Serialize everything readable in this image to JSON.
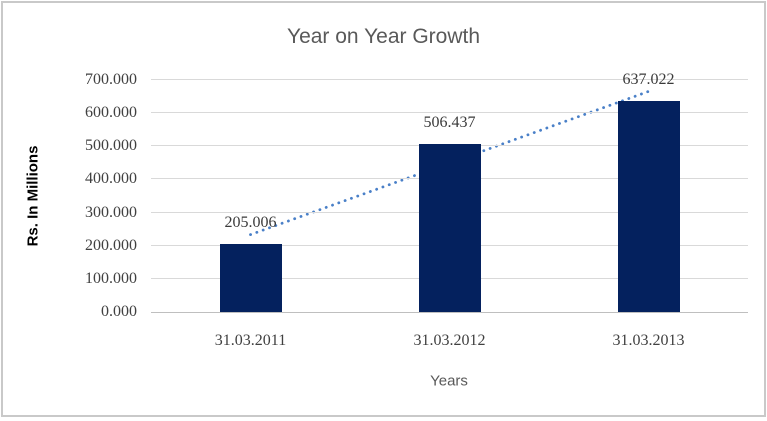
{
  "chart_data": {
    "type": "bar",
    "title": "Year on Year Growth",
    "xlabel": "Years",
    "ylabel": "Rs. In Millions",
    "categories": [
      "31.03.2011",
      "31.03.2012",
      "31.03.2013"
    ],
    "values": [
      205.006,
      506.437,
      637.022
    ],
    "data_labels": [
      "205.006",
      "506.437",
      "637.022"
    ],
    "ylim": [
      0,
      700
    ],
    "ytick_step": 100,
    "ytick_labels": [
      "0.000",
      "100.000",
      "200.000",
      "300.000",
      "400.000",
      "500.000",
      "600.000",
      "700.000"
    ],
    "grid": true,
    "legend": "none",
    "trendline": {
      "type": "linear",
      "style": "dotted"
    },
    "colors": {
      "bar": "#04215e",
      "trendline": "#4a80c8",
      "gridline": "#d9d9d9",
      "axis_line": "#bfbfbf",
      "tick_text": "#404040",
      "title_text": "#595959",
      "frame_border": "#c9c9c9"
    }
  }
}
